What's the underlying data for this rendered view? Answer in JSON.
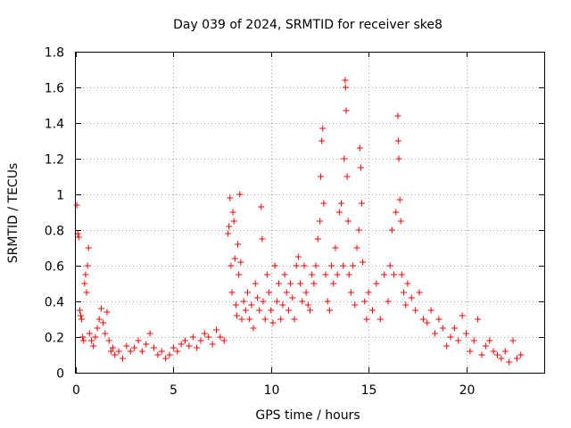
{
  "chart_data": {
    "type": "scatter",
    "title": "Day 039 of 2024, SRMTID for receiver ske8",
    "xlabel": "GPS time / hours",
    "ylabel": "SRMTID / TECUs",
    "xlim": [
      0,
      24
    ],
    "ylim": [
      0,
      1.8
    ],
    "xticks": [
      0,
      5,
      10,
      15,
      20
    ],
    "xtick_labels": [
      "0",
      "5",
      "10",
      "15",
      "20"
    ],
    "yticks": [
      0,
      0.2,
      0.4,
      0.6,
      0.8,
      1,
      1.2,
      1.4,
      1.6,
      1.8
    ],
    "ytick_labels": [
      "0",
      "0.2",
      "0.4",
      "0.6",
      "0.8",
      "1",
      "1.2",
      "1.4",
      "1.6",
      "1.8"
    ],
    "grid": true,
    "marker": "+",
    "color": "#ff0000",
    "series": [
      {
        "name": "SRMTID",
        "points": [
          [
            0.05,
            0.94
          ],
          [
            0.1,
            0.78
          ],
          [
            0.15,
            0.76
          ],
          [
            0.2,
            0.35
          ],
          [
            0.25,
            0.32
          ],
          [
            0.3,
            0.3
          ],
          [
            0.35,
            0.2
          ],
          [
            0.4,
            0.18
          ],
          [
            0.45,
            0.5
          ],
          [
            0.5,
            0.55
          ],
          [
            0.55,
            0.45
          ],
          [
            0.6,
            0.6
          ],
          [
            0.65,
            0.7
          ],
          [
            0.7,
            0.22
          ],
          [
            0.8,
            0.18
          ],
          [
            0.9,
            0.15
          ],
          [
            1.0,
            0.2
          ],
          [
            1.1,
            0.25
          ],
          [
            1.2,
            0.3
          ],
          [
            1.3,
            0.36
          ],
          [
            1.4,
            0.28
          ],
          [
            1.5,
            0.22
          ],
          [
            1.6,
            0.34
          ],
          [
            1.7,
            0.18
          ],
          [
            1.8,
            0.12
          ],
          [
            1.9,
            0.14
          ],
          [
            2.0,
            0.1
          ],
          [
            2.2,
            0.12
          ],
          [
            2.4,
            0.08
          ],
          [
            2.6,
            0.15
          ],
          [
            2.8,
            0.12
          ],
          [
            3.0,
            0.14
          ],
          [
            3.2,
            0.18
          ],
          [
            3.4,
            0.12
          ],
          [
            3.6,
            0.16
          ],
          [
            3.8,
            0.22
          ],
          [
            4.0,
            0.14
          ],
          [
            4.2,
            0.1
          ],
          [
            4.4,
            0.12
          ],
          [
            4.6,
            0.08
          ],
          [
            4.8,
            0.1
          ],
          [
            5.0,
            0.14
          ],
          [
            5.2,
            0.12
          ],
          [
            5.4,
            0.16
          ],
          [
            5.6,
            0.18
          ],
          [
            5.8,
            0.15
          ],
          [
            6.0,
            0.2
          ],
          [
            6.2,
            0.14
          ],
          [
            6.4,
            0.18
          ],
          [
            6.6,
            0.22
          ],
          [
            6.8,
            0.2
          ],
          [
            7.0,
            0.16
          ],
          [
            7.2,
            0.24
          ],
          [
            7.4,
            0.2
          ],
          [
            7.6,
            0.18
          ],
          [
            7.8,
            0.78
          ],
          [
            7.85,
            0.82
          ],
          [
            7.9,
            0.98
          ],
          [
            7.95,
            0.6
          ],
          [
            8.0,
            0.45
          ],
          [
            8.05,
            0.9
          ],
          [
            8.1,
            0.85
          ],
          [
            8.15,
            0.64
          ],
          [
            8.2,
            0.38
          ],
          [
            8.25,
            0.32
          ],
          [
            8.3,
            0.72
          ],
          [
            8.35,
            0.55
          ],
          [
            8.4,
            1.0
          ],
          [
            8.45,
            0.62
          ],
          [
            8.5,
            0.3
          ],
          [
            8.6,
            0.4
          ],
          [
            8.7,
            0.35
          ],
          [
            8.8,
            0.45
          ],
          [
            8.9,
            0.3
          ],
          [
            9.0,
            0.38
          ],
          [
            9.1,
            0.25
          ],
          [
            9.2,
            0.5
          ],
          [
            9.3,
            0.42
          ],
          [
            9.4,
            0.35
          ],
          [
            9.5,
            0.93
          ],
          [
            9.55,
            0.75
          ],
          [
            9.6,
            0.4
          ],
          [
            9.7,
            0.3
          ],
          [
            9.8,
            0.55
          ],
          [
            9.9,
            0.45
          ],
          [
            10.0,
            0.35
          ],
          [
            10.1,
            0.28
          ],
          [
            10.2,
            0.6
          ],
          [
            10.3,
            0.4
          ],
          [
            10.4,
            0.5
          ],
          [
            10.5,
            0.3
          ],
          [
            10.6,
            0.38
          ],
          [
            10.7,
            0.55
          ],
          [
            10.8,
            0.45
          ],
          [
            10.9,
            0.35
          ],
          [
            11.0,
            0.5
          ],
          [
            11.1,
            0.42
          ],
          [
            11.2,
            0.3
          ],
          [
            11.3,
            0.6
          ],
          [
            11.4,
            0.65
          ],
          [
            11.5,
            0.5
          ],
          [
            11.6,
            0.4
          ],
          [
            11.7,
            0.6
          ],
          [
            11.8,
            0.45
          ],
          [
            11.9,
            0.38
          ],
          [
            12.0,
            0.35
          ],
          [
            12.1,
            0.55
          ],
          [
            12.2,
            0.5
          ],
          [
            12.3,
            0.6
          ],
          [
            12.4,
            0.75
          ],
          [
            12.5,
            0.85
          ],
          [
            12.55,
            1.1
          ],
          [
            12.6,
            1.3
          ],
          [
            12.65,
            1.37
          ],
          [
            12.7,
            0.95
          ],
          [
            12.8,
            0.55
          ],
          [
            12.9,
            0.4
          ],
          [
            13.0,
            0.35
          ],
          [
            13.1,
            0.6
          ],
          [
            13.2,
            0.5
          ],
          [
            13.3,
            0.7
          ],
          [
            13.4,
            0.55
          ],
          [
            13.5,
            0.9
          ],
          [
            13.6,
            0.95
          ],
          [
            13.7,
            0.6
          ],
          [
            13.75,
            1.2
          ],
          [
            13.8,
            1.64
          ],
          [
            13.82,
            1.6
          ],
          [
            13.85,
            1.47
          ],
          [
            13.9,
            1.1
          ],
          [
            13.95,
            0.85
          ],
          [
            14.0,
            0.55
          ],
          [
            14.1,
            0.45
          ],
          [
            14.2,
            0.6
          ],
          [
            14.3,
            0.38
          ],
          [
            14.4,
            0.7
          ],
          [
            14.5,
            0.8
          ],
          [
            14.55,
            1.26
          ],
          [
            14.6,
            1.15
          ],
          [
            14.65,
            0.95
          ],
          [
            14.7,
            0.62
          ],
          [
            14.8,
            0.4
          ],
          [
            14.9,
            0.3
          ],
          [
            15.0,
            0.45
          ],
          [
            15.2,
            0.35
          ],
          [
            15.4,
            0.5
          ],
          [
            15.6,
            0.3
          ],
          [
            15.8,
            0.55
          ],
          [
            16.0,
            0.4
          ],
          [
            16.1,
            0.6
          ],
          [
            16.2,
            0.8
          ],
          [
            16.3,
            0.55
          ],
          [
            16.4,
            0.9
          ],
          [
            16.5,
            1.44
          ],
          [
            16.52,
            1.3
          ],
          [
            16.55,
            1.2
          ],
          [
            16.6,
            0.97
          ],
          [
            16.65,
            0.85
          ],
          [
            16.7,
            0.55
          ],
          [
            16.8,
            0.45
          ],
          [
            16.9,
            0.38
          ],
          [
            17.0,
            0.5
          ],
          [
            17.2,
            0.42
          ],
          [
            17.4,
            0.35
          ],
          [
            17.6,
            0.45
          ],
          [
            17.8,
            0.3
          ],
          [
            18.0,
            0.28
          ],
          [
            18.2,
            0.35
          ],
          [
            18.4,
            0.22
          ],
          [
            18.6,
            0.3
          ],
          [
            18.8,
            0.25
          ],
          [
            19.0,
            0.15
          ],
          [
            19.2,
            0.2
          ],
          [
            19.4,
            0.25
          ],
          [
            19.6,
            0.18
          ],
          [
            19.8,
            0.32
          ],
          [
            20.0,
            0.22
          ],
          [
            20.2,
            0.12
          ],
          [
            20.4,
            0.18
          ],
          [
            20.6,
            0.3
          ],
          [
            20.8,
            0.1
          ],
          [
            21.0,
            0.15
          ],
          [
            21.2,
            0.18
          ],
          [
            21.4,
            0.12
          ],
          [
            21.6,
            0.1
          ],
          [
            21.8,
            0.08
          ],
          [
            22.0,
            0.12
          ],
          [
            22.2,
            0.06
          ],
          [
            22.4,
            0.18
          ],
          [
            22.6,
            0.08
          ],
          [
            22.8,
            0.1
          ]
        ]
      }
    ]
  }
}
